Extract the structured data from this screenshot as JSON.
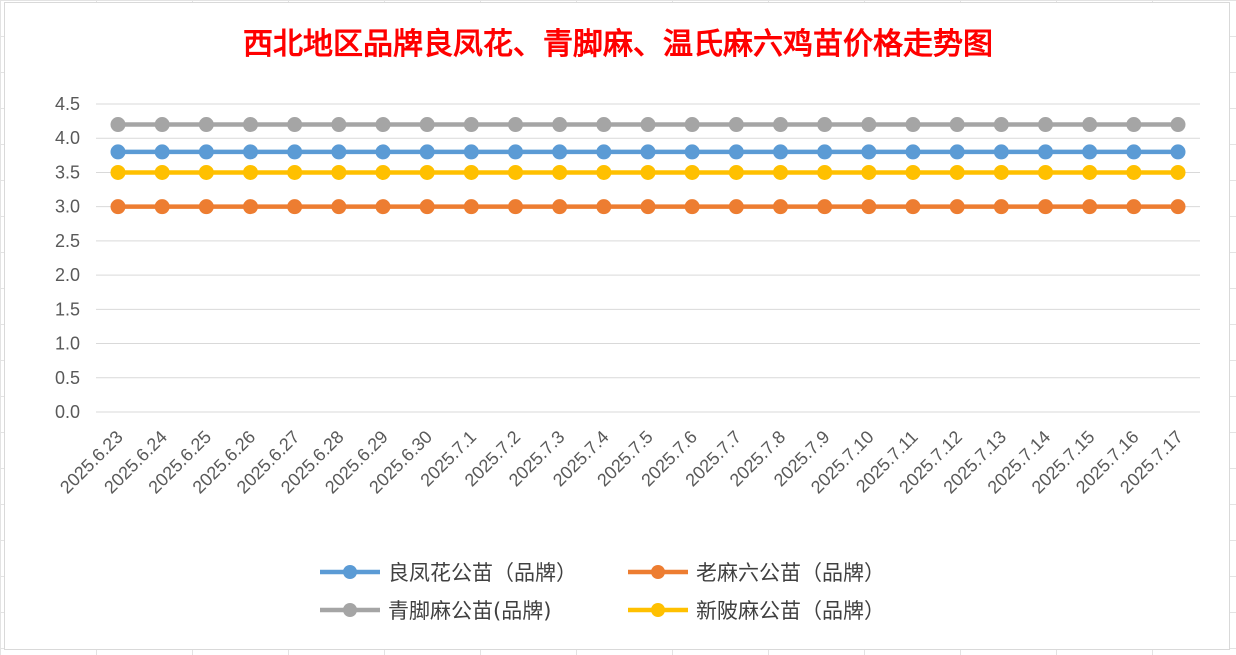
{
  "chart_data": {
    "type": "line",
    "title": "西北地区品牌良凤花、青脚麻、温氏麻六鸡苗价格走势图",
    "xlabel": "",
    "ylabel": "",
    "ylim": [
      0,
      4.5
    ],
    "yticks": [
      "0.0",
      "0.5",
      "1.0",
      "1.5",
      "2.0",
      "2.5",
      "3.0",
      "3.5",
      "4.0",
      "4.5"
    ],
    "grid": true,
    "legend_position": "bottom",
    "categories": [
      "2025.6.23",
      "2025.6.24",
      "2025.6.25",
      "2025.6.26",
      "2025.6.27",
      "2025.6.28",
      "2025.6.29",
      "2025.6.30",
      "2025.7.1",
      "2025.7.2",
      "2025.7.3",
      "2025.7.4",
      "2025.7.5",
      "2025.7.6",
      "2025.7.7",
      "2025.7.8",
      "2025.7.9",
      "2025.7.10",
      "2025.7.11",
      "2025.7.12",
      "2025.7.13",
      "2025.7.14",
      "2025.7.15",
      "2025.7.16",
      "2025.7.17"
    ],
    "series": [
      {
        "name": "良凤花公苗（品牌）",
        "color": "#5b9bd5",
        "values": [
          3.8,
          3.8,
          3.8,
          3.8,
          3.8,
          3.8,
          3.8,
          3.8,
          3.8,
          3.8,
          3.8,
          3.8,
          3.8,
          3.8,
          3.8,
          3.8,
          3.8,
          3.8,
          3.8,
          3.8,
          3.8,
          3.8,
          3.8,
          3.8,
          3.8
        ]
      },
      {
        "name": "老麻六公苗（品牌）",
        "color": "#ed7d31",
        "values": [
          3.0,
          3.0,
          3.0,
          3.0,
          3.0,
          3.0,
          3.0,
          3.0,
          3.0,
          3.0,
          3.0,
          3.0,
          3.0,
          3.0,
          3.0,
          3.0,
          3.0,
          3.0,
          3.0,
          3.0,
          3.0,
          3.0,
          3.0,
          3.0,
          3.0
        ]
      },
      {
        "name": "青脚麻公苗(品牌)",
        "color": "#a5a5a5",
        "values": [
          4.2,
          4.2,
          4.2,
          4.2,
          4.2,
          4.2,
          4.2,
          4.2,
          4.2,
          4.2,
          4.2,
          4.2,
          4.2,
          4.2,
          4.2,
          4.2,
          4.2,
          4.2,
          4.2,
          4.2,
          4.2,
          4.2,
          4.2,
          4.2,
          4.2
        ]
      },
      {
        "name": "新陂麻公苗（品牌）",
        "color": "#ffc000",
        "values": [
          3.5,
          3.5,
          3.5,
          3.5,
          3.5,
          3.5,
          3.5,
          3.5,
          3.5,
          3.5,
          3.5,
          3.5,
          3.5,
          3.5,
          3.5,
          3.5,
          3.5,
          3.5,
          3.5,
          3.5,
          3.5,
          3.5,
          3.5,
          3.5,
          3.5
        ]
      }
    ]
  }
}
